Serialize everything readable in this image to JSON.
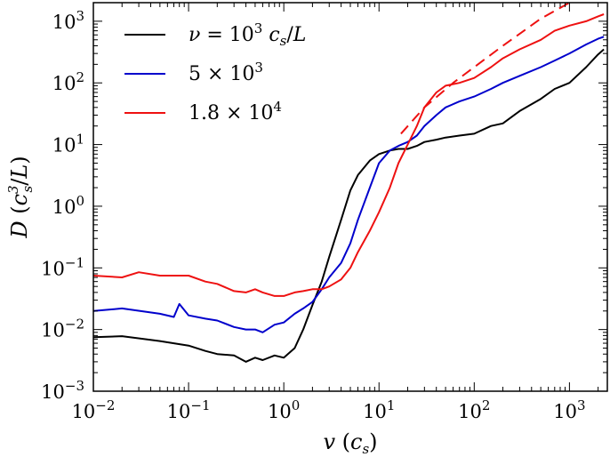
{
  "chart_data": {
    "type": "line",
    "title": "",
    "xlabel": "v (c_s)",
    "ylabel": "D (c_s^3/L)",
    "xscale": "log",
    "yscale": "log",
    "xlim": [
      0.01,
      2500
    ],
    "ylim": [
      0.001,
      2000
    ],
    "x_ticks": [
      0.01,
      0.1,
      1,
      10,
      100,
      1000
    ],
    "y_ticks": [
      0.001,
      0.01,
      0.1,
      1,
      10,
      100,
      1000
    ],
    "x_tick_labels": [
      {
        "base": "10",
        "exp": "−2"
      },
      {
        "base": "10",
        "exp": "−1"
      },
      {
        "base": "10",
        "exp": "0"
      },
      {
        "base": "10",
        "exp": "1"
      },
      {
        "base": "10",
        "exp": "2"
      },
      {
        "base": "10",
        "exp": "3"
      }
    ],
    "y_tick_labels": [
      {
        "base": "10",
        "exp": "−3"
      },
      {
        "base": "10",
        "exp": "−2"
      },
      {
        "base": "10",
        "exp": "−1"
      },
      {
        "base": "10",
        "exp": "0"
      },
      {
        "base": "10",
        "exp": "1"
      },
      {
        "base": "10",
        "exp": "2"
      },
      {
        "base": "10",
        "exp": "3"
      }
    ],
    "legend_position": "top-left",
    "grid": false,
    "series": [
      {
        "name": "ν = 10³ c_s/L",
        "color": "#000000",
        "x": [
          0.01,
          0.02,
          0.05,
          0.1,
          0.15,
          0.2,
          0.3,
          0.4,
          0.5,
          0.6,
          0.8,
          1.0,
          1.3,
          1.6,
          2.0,
          2.5,
          3.0,
          4.0,
          5.0,
          6.0,
          8.0,
          10,
          13,
          16,
          20,
          25,
          30,
          40,
          50,
          70,
          100,
          150,
          200,
          300,
          500,
          700,
          1000,
          1500,
          2000,
          2300
        ],
        "y": [
          0.0075,
          0.0078,
          0.0065,
          0.0055,
          0.0045,
          0.004,
          0.0038,
          0.003,
          0.0035,
          0.0032,
          0.0038,
          0.0035,
          0.005,
          0.01,
          0.025,
          0.06,
          0.15,
          0.6,
          1.8,
          3.2,
          5.5,
          7.0,
          8.0,
          8.5,
          8.5,
          9.5,
          11,
          12,
          13,
          14,
          15,
          20,
          22,
          35,
          55,
          80,
          100,
          180,
          290,
          350
        ]
      },
      {
        "name": "5 × 10³",
        "color": "#0000cc",
        "x": [
          0.01,
          0.02,
          0.05,
          0.07,
          0.08,
          0.1,
          0.15,
          0.2,
          0.3,
          0.4,
          0.5,
          0.6,
          0.8,
          1.0,
          1.3,
          1.6,
          2.0,
          2.5,
          3.0,
          4.0,
          5.0,
          6.0,
          8.0,
          10,
          13,
          16,
          20,
          25,
          30,
          40,
          50,
          70,
          100,
          150,
          200,
          300,
          500,
          700,
          1000,
          1500,
          2000,
          2300
        ],
        "y": [
          0.02,
          0.022,
          0.018,
          0.016,
          0.026,
          0.017,
          0.015,
          0.014,
          0.011,
          0.01,
          0.01,
          0.009,
          0.012,
          0.013,
          0.018,
          0.022,
          0.028,
          0.045,
          0.07,
          0.12,
          0.25,
          0.6,
          2.0,
          5.0,
          8.0,
          9.5,
          11,
          14,
          20,
          30,
          40,
          50,
          60,
          80,
          100,
          130,
          180,
          230,
          300,
          420,
          520,
          560
        ]
      },
      {
        "name": "1.8 × 10⁴",
        "color": "#ee1111",
        "x": [
          0.01,
          0.02,
          0.03,
          0.05,
          0.1,
          0.15,
          0.2,
          0.3,
          0.4,
          0.5,
          0.6,
          0.8,
          1.0,
          1.3,
          1.6,
          2.0,
          2.5,
          3.0,
          4.0,
          5.0,
          6.0,
          8.0,
          10,
          13,
          16,
          20,
          25,
          30,
          40,
          50,
          70,
          100,
          150,
          200,
          300,
          500,
          700,
          1000,
          1500,
          2000,
          2300
        ],
        "y": [
          0.075,
          0.07,
          0.085,
          0.075,
          0.075,
          0.06,
          0.055,
          0.042,
          0.04,
          0.045,
          0.04,
          0.035,
          0.035,
          0.04,
          0.042,
          0.045,
          0.045,
          0.05,
          0.065,
          0.1,
          0.18,
          0.4,
          0.8,
          2.0,
          5.0,
          10,
          20,
          40,
          70,
          90,
          100,
          120,
          180,
          250,
          350,
          500,
          700,
          850,
          1000,
          1200,
          1300
        ]
      },
      {
        "name": "",
        "color": "#ee1111",
        "dashed": true,
        "x": [
          17,
          30,
          60,
          100,
          200,
          500,
          1000,
          2300
        ],
        "y": [
          15,
          40,
          100,
          180,
          400,
          1100,
          2000,
          3500
        ]
      }
    ]
  }
}
